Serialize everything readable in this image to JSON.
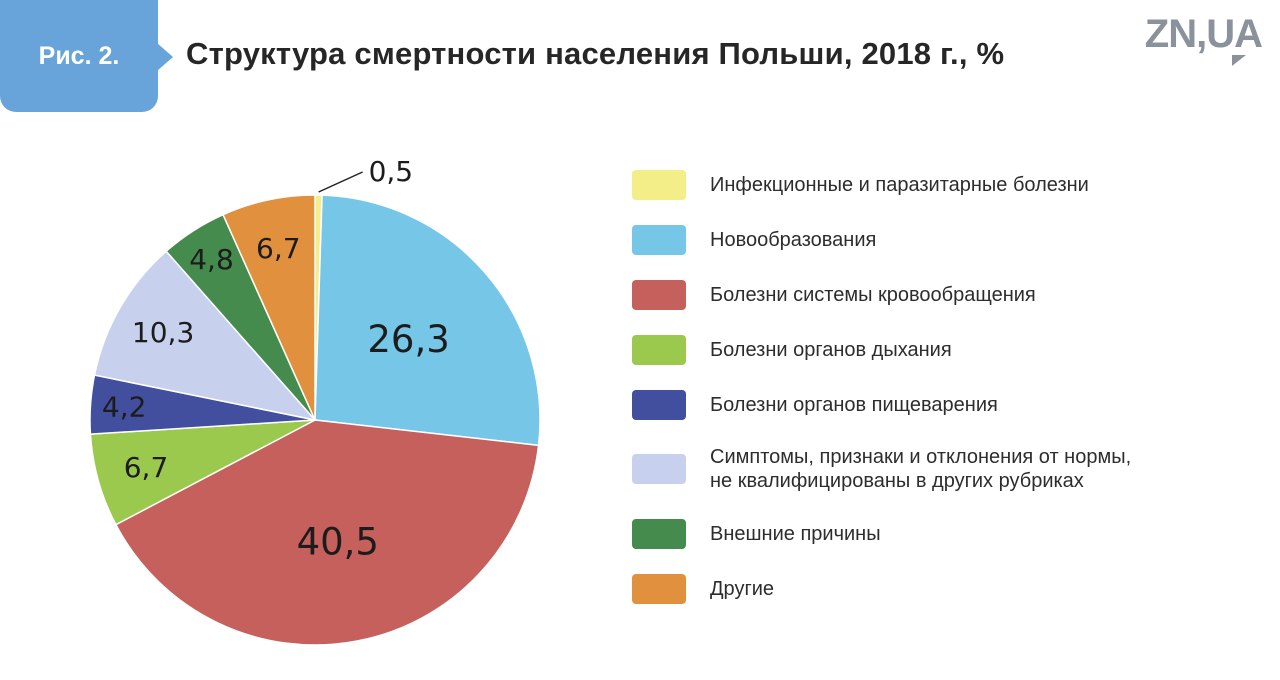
{
  "figure": {
    "badge_label": "Рис. 2.",
    "title": "Структура смертности населения Польши, 2018 г., %",
    "logo_text": "ZN,UA",
    "badge_color": "#68a4d9",
    "logo_color": "#8b929b"
  },
  "chart_data": {
    "type": "pie",
    "title": "Структура смертности населения Польши, 2018 г., %",
    "unit": "%",
    "start_angle_deg": -90,
    "direction": "clockwise",
    "legend_position": "right",
    "categories": [
      "Инфекционные и паразитарные болезни",
      "Новообразования",
      "Болезни системы кровообращения",
      "Болезни органов дыхания",
      "Болезни органов пищеварения",
      "Симптомы, признаки и отклонения от нормы, не квалифицированы в других рубриках",
      "Внешние причины",
      "Другие"
    ],
    "legend_labels": [
      "Инфекционные и паразитарные болезни",
      "Новообразования",
      "Болезни системы кровообращения",
      "Болезни органов дыхания",
      "Болезни органов пищеварения",
      "Симптомы, признаки и отклонения от нормы,\nне квалифицированы в других рубриках",
      "Внешние причины",
      "Другие"
    ],
    "values": [
      0.5,
      26.3,
      40.5,
      6.7,
      4.2,
      10.3,
      4.8,
      6.7
    ],
    "value_labels": [
      "0,5",
      "26,3",
      "40,5",
      "6,7",
      "4,2",
      "10,3",
      "4,8",
      "6,7"
    ],
    "colors": [
      "#f3ee87",
      "#76c6e8",
      "#c5605c",
      "#9bc94e",
      "#424f9f",
      "#c7d0ed",
      "#468b4e",
      "#e1903e"
    ]
  }
}
